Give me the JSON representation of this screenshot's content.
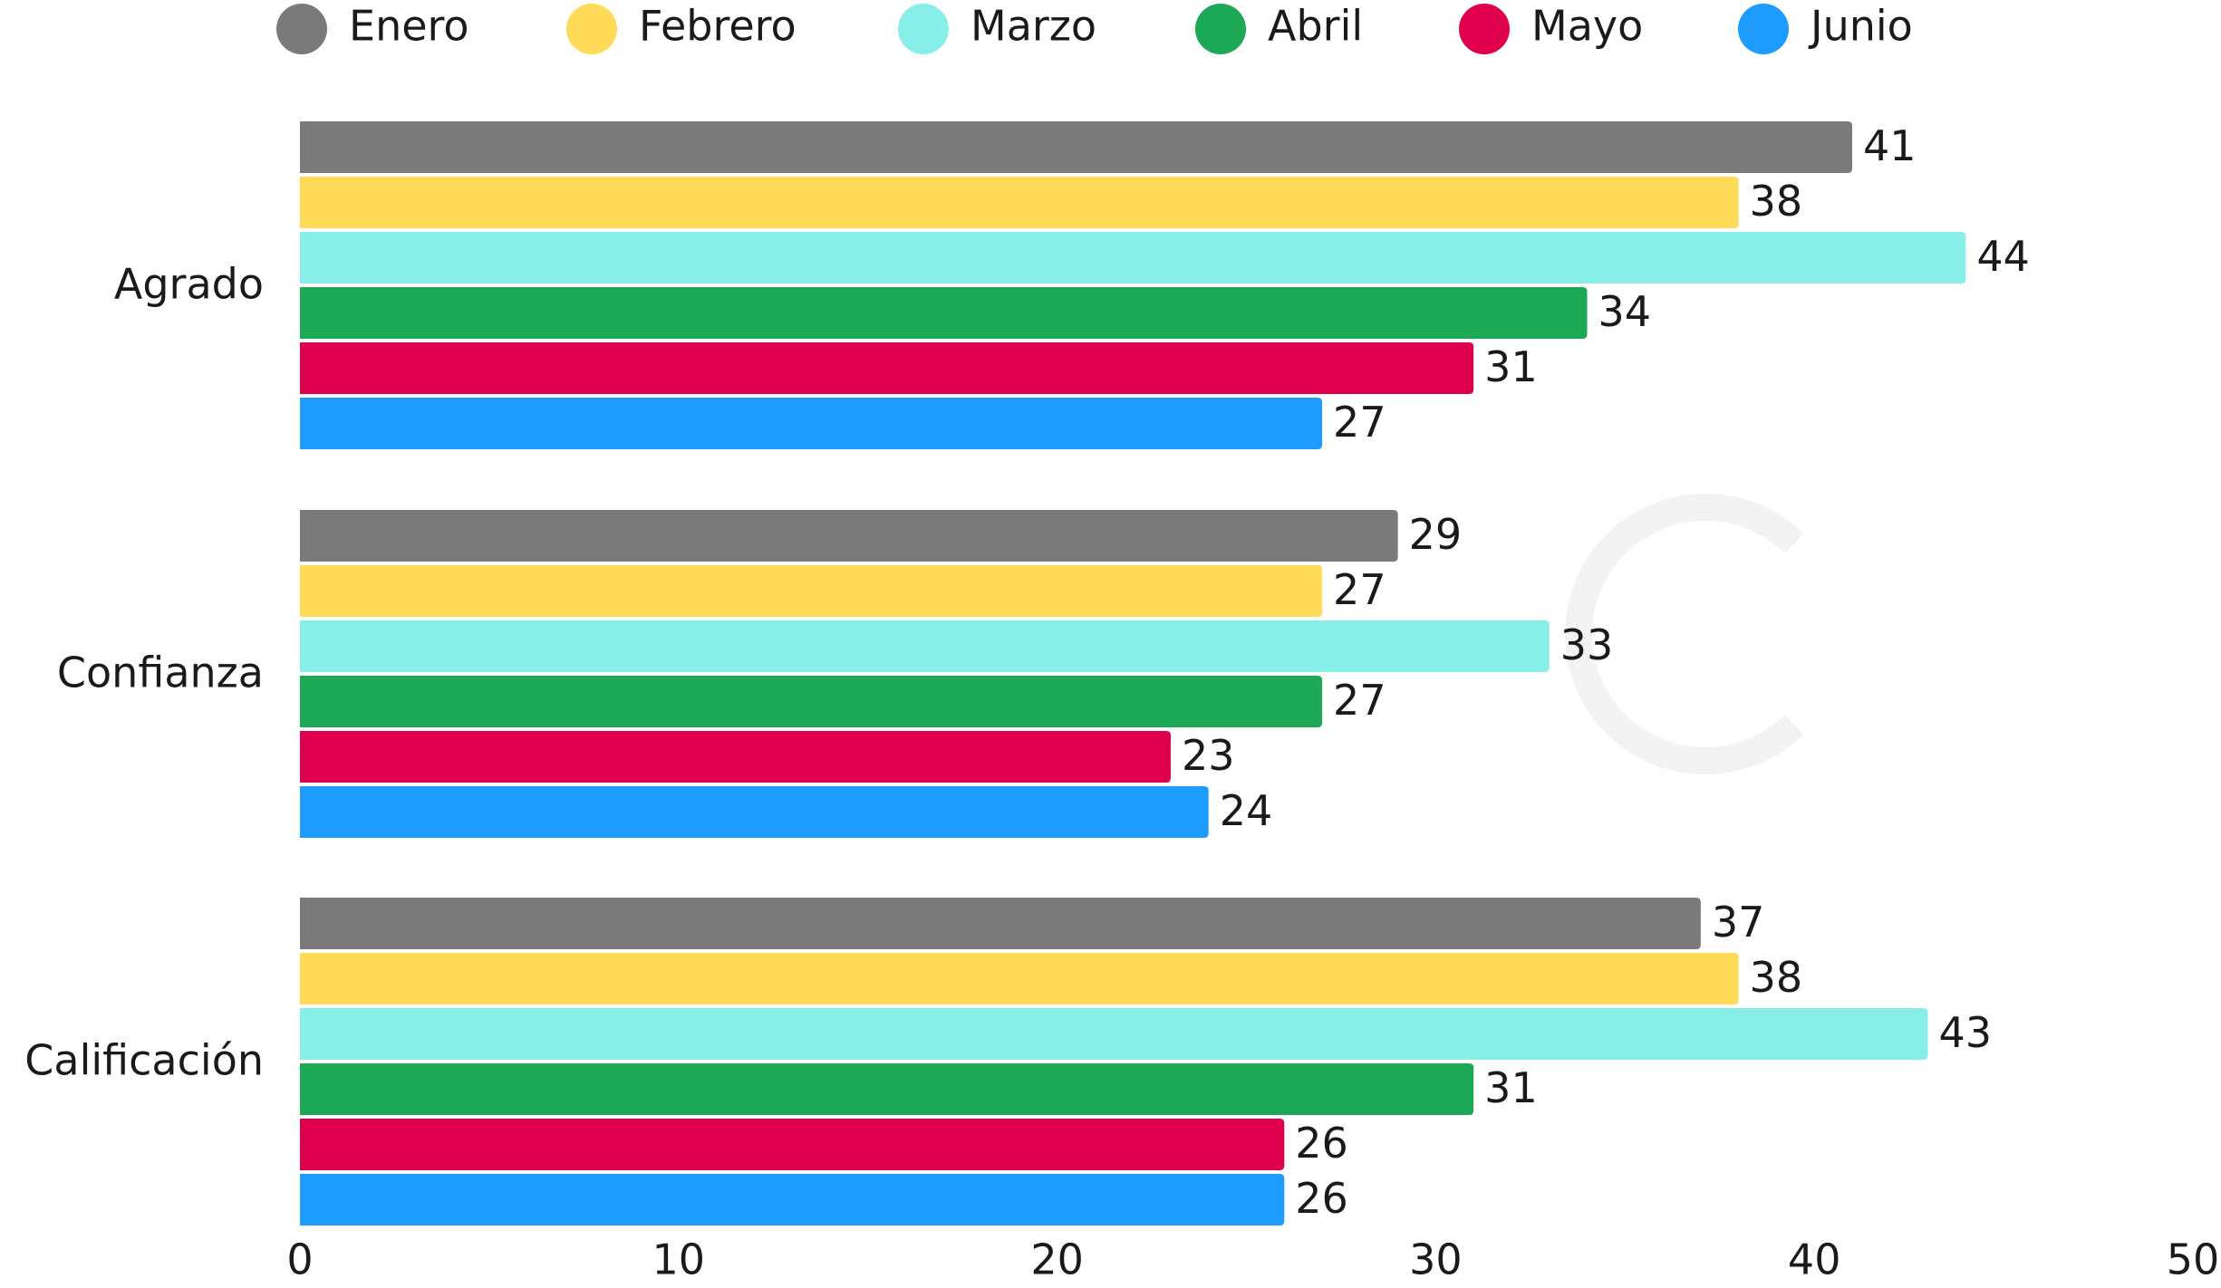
{
  "chart_data": {
    "type": "barh",
    "categories": [
      "Agrado",
      "Confianza",
      "Calificación"
    ],
    "series": [
      {
        "name": "Enero",
        "color": "#7a7a7a",
        "values": [
          41,
          29,
          37
        ]
      },
      {
        "name": "Febrero",
        "color": "#ffdb58",
        "values": [
          38,
          27,
          38
        ]
      },
      {
        "name": "Marzo",
        "color": "#87efe8",
        "values": [
          44,
          33,
          43
        ]
      },
      {
        "name": "Abril",
        "color": "#1da856",
        "values": [
          34,
          27,
          31
        ]
      },
      {
        "name": "Mayo",
        "color": "#de004d",
        "values": [
          31,
          23,
          26
        ]
      },
      {
        "name": "Junio",
        "color": "#1e9bff",
        "values": [
          27,
          24,
          26
        ]
      }
    ],
    "xlim": [
      0,
      50
    ],
    "xticks": [
      0,
      10,
      20,
      30,
      40,
      50
    ],
    "legend": "top",
    "grid": false
  }
}
